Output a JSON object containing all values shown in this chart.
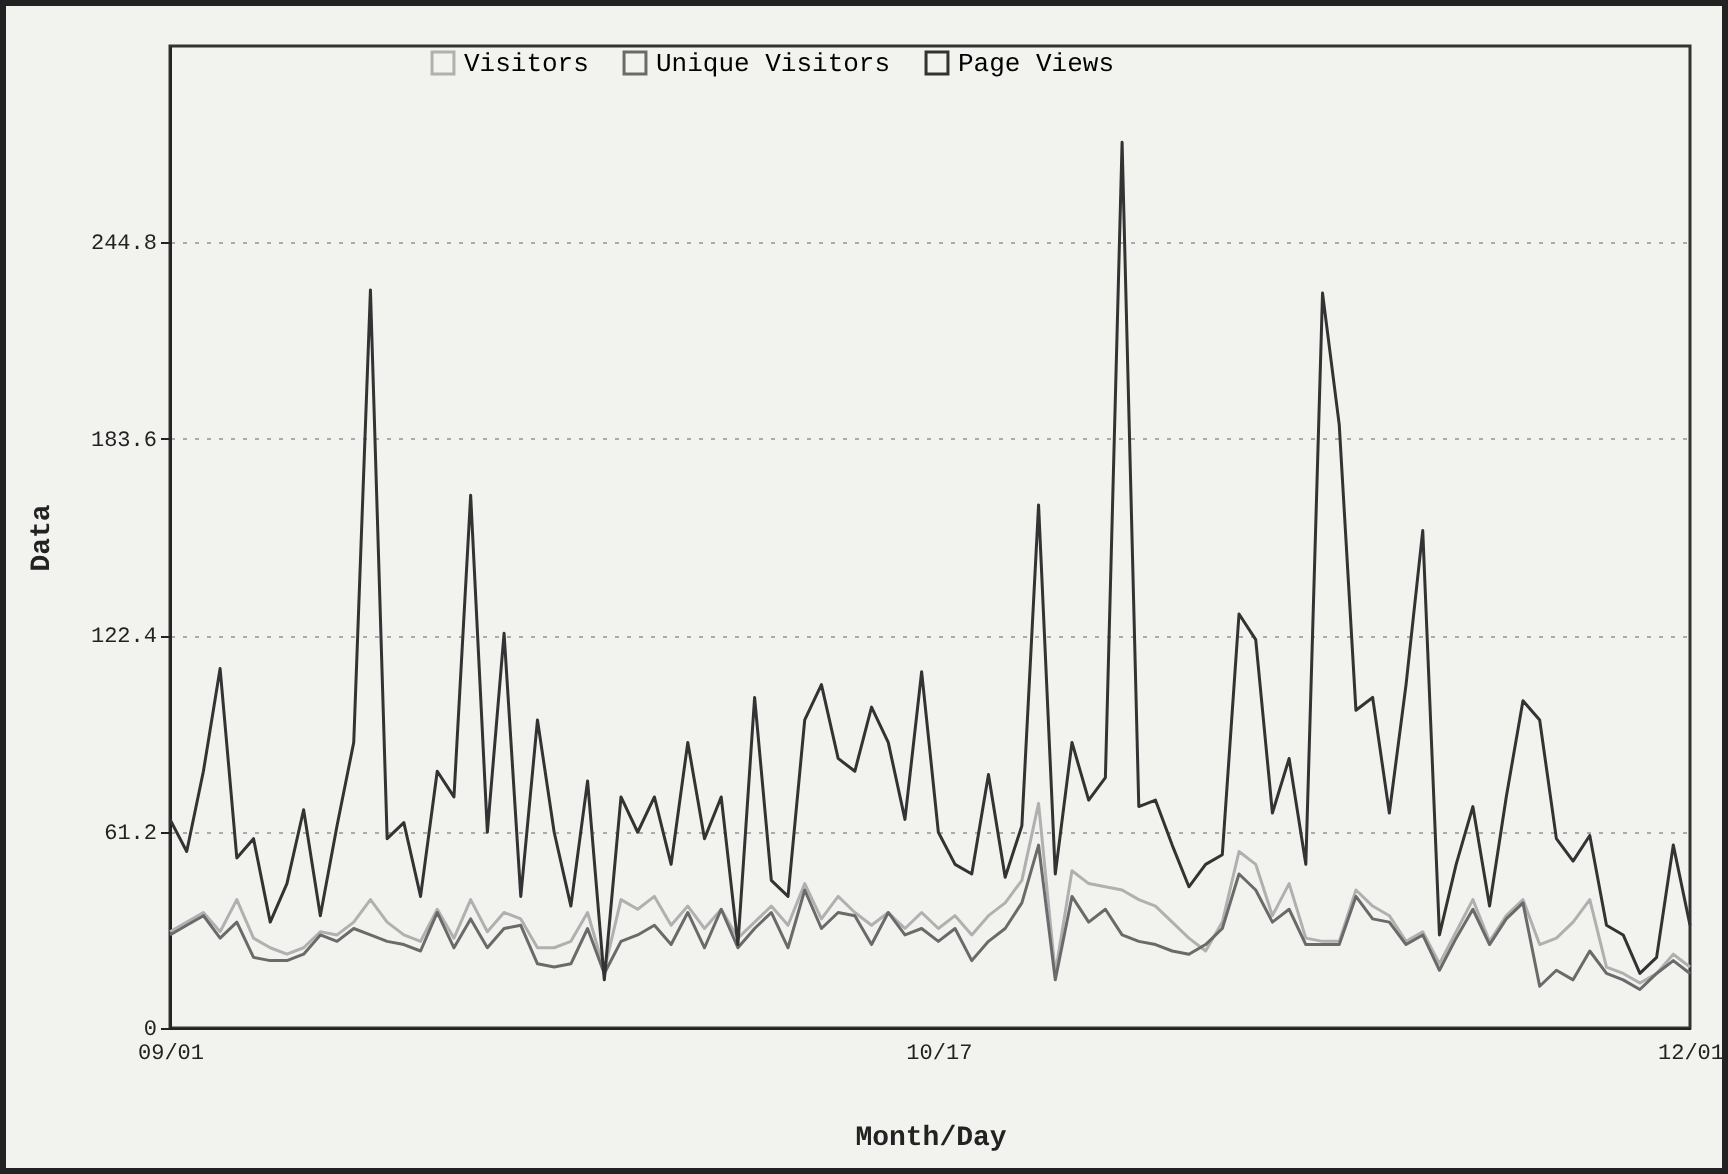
{
  "chart_data": {
    "type": "line",
    "xlabel": "Month/Day",
    "ylabel": "Data",
    "categories": [
      "09/01",
      null,
      null,
      null,
      null,
      null,
      null,
      null,
      null,
      null,
      null,
      null,
      null,
      null,
      null,
      null,
      null,
      null,
      null,
      null,
      null,
      null,
      null,
      null,
      null,
      null,
      null,
      null,
      null,
      null,
      null,
      null,
      null,
      null,
      null,
      null,
      null,
      null,
      null,
      null,
      null,
      null,
      null,
      null,
      null,
      null,
      "10/17",
      null,
      null,
      null,
      null,
      null,
      null,
      null,
      null,
      null,
      null,
      null,
      null,
      null,
      null,
      null,
      null,
      null,
      null,
      null,
      null,
      null,
      null,
      null,
      null,
      null,
      null,
      null,
      null,
      null,
      null,
      null,
      null,
      null,
      null,
      null,
      null,
      null,
      null,
      null,
      null,
      null,
      null,
      null,
      null,
      "12/01"
    ],
    "series": [
      {
        "name": "Visitors",
        "color": "#b0b0b0",
        "values": [
          30,
          33,
          36,
          30,
          40,
          28,
          25,
          23,
          25,
          30,
          29,
          33,
          40,
          33,
          29,
          27,
          37,
          28,
          40,
          30,
          36,
          34,
          25,
          25,
          27,
          36,
          18,
          40,
          37,
          41,
          32,
          38,
          31,
          37,
          28,
          33,
          38,
          32,
          45,
          34,
          41,
          36,
          32,
          36,
          31,
          36,
          31,
          35,
          29,
          35,
          39,
          46,
          70,
          17,
          49,
          45,
          44,
          43,
          40,
          38,
          33,
          28,
          24,
          33,
          55,
          51,
          35,
          45,
          28,
          27,
          27,
          43,
          38,
          35,
          27,
          30,
          20,
          30,
          40,
          27,
          35,
          40,
          26,
          28,
          33,
          40,
          19,
          17,
          14,
          17,
          23,
          19
        ]
      },
      {
        "name": "Unique Visitors",
        "color": "#6a6a6a",
        "values": [
          29,
          32,
          35,
          28,
          33,
          22,
          21,
          21,
          23,
          29,
          27,
          31,
          29,
          27,
          26,
          24,
          36,
          25,
          34,
          25,
          31,
          32,
          20,
          19,
          20,
          31,
          17,
          27,
          29,
          32,
          26,
          36,
          25,
          37,
          25,
          31,
          36,
          25,
          43,
          31,
          36,
          35,
          26,
          36,
          29,
          31,
          27,
          31,
          21,
          27,
          31,
          39,
          57,
          15,
          41,
          33,
          37,
          29,
          27,
          26,
          24,
          23,
          26,
          31,
          48,
          43,
          33,
          37,
          26,
          26,
          26,
          41,
          34,
          33,
          26,
          29,
          18,
          28,
          37,
          26,
          34,
          39,
          13,
          18,
          15,
          24,
          17,
          15,
          12,
          17,
          21,
          17
        ]
      },
      {
        "name": "Page Views",
        "color": "#333333",
        "values": [
          65,
          55,
          80,
          112,
          53,
          59,
          33,
          45,
          68,
          35,
          63,
          89,
          230,
          59,
          64,
          41,
          80,
          72,
          166,
          61,
          123,
          41,
          96,
          61,
          38,
          77,
          15,
          72,
          61,
          72,
          51,
          89,
          59,
          72,
          26,
          103,
          46,
          41,
          96,
          107,
          84,
          80,
          100,
          89,
          65,
          111,
          61,
          51,
          48,
          79,
          47,
          63,
          163,
          48,
          89,
          71,
          78,
          276,
          69,
          71,
          57,
          44,
          51,
          54,
          129,
          121,
          67,
          84,
          51,
          229,
          188,
          99,
          103,
          67,
          107,
          155,
          29,
          51,
          69,
          38,
          72,
          102,
          96,
          59,
          52,
          60,
          32,
          29,
          17,
          22,
          57,
          32
        ]
      }
    ],
    "ylim": [
      0,
      306
    ],
    "yticks": [
      0,
      61.2,
      122.4,
      183.6,
      244.8
    ],
    "grid": "y",
    "legend": "top",
    "marker": "none",
    "line_style": "solid"
  }
}
